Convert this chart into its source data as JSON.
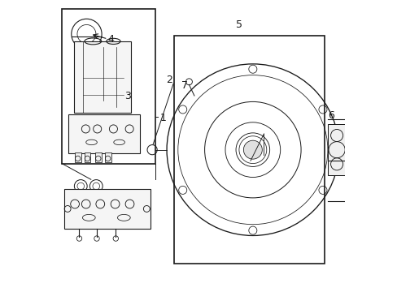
{
  "bg_color": "#ffffff",
  "line_color": "#1a1a1a",
  "title": "",
  "fig_width": 4.89,
  "fig_height": 3.6,
  "dpi": 100,
  "line_width": 0.8
}
